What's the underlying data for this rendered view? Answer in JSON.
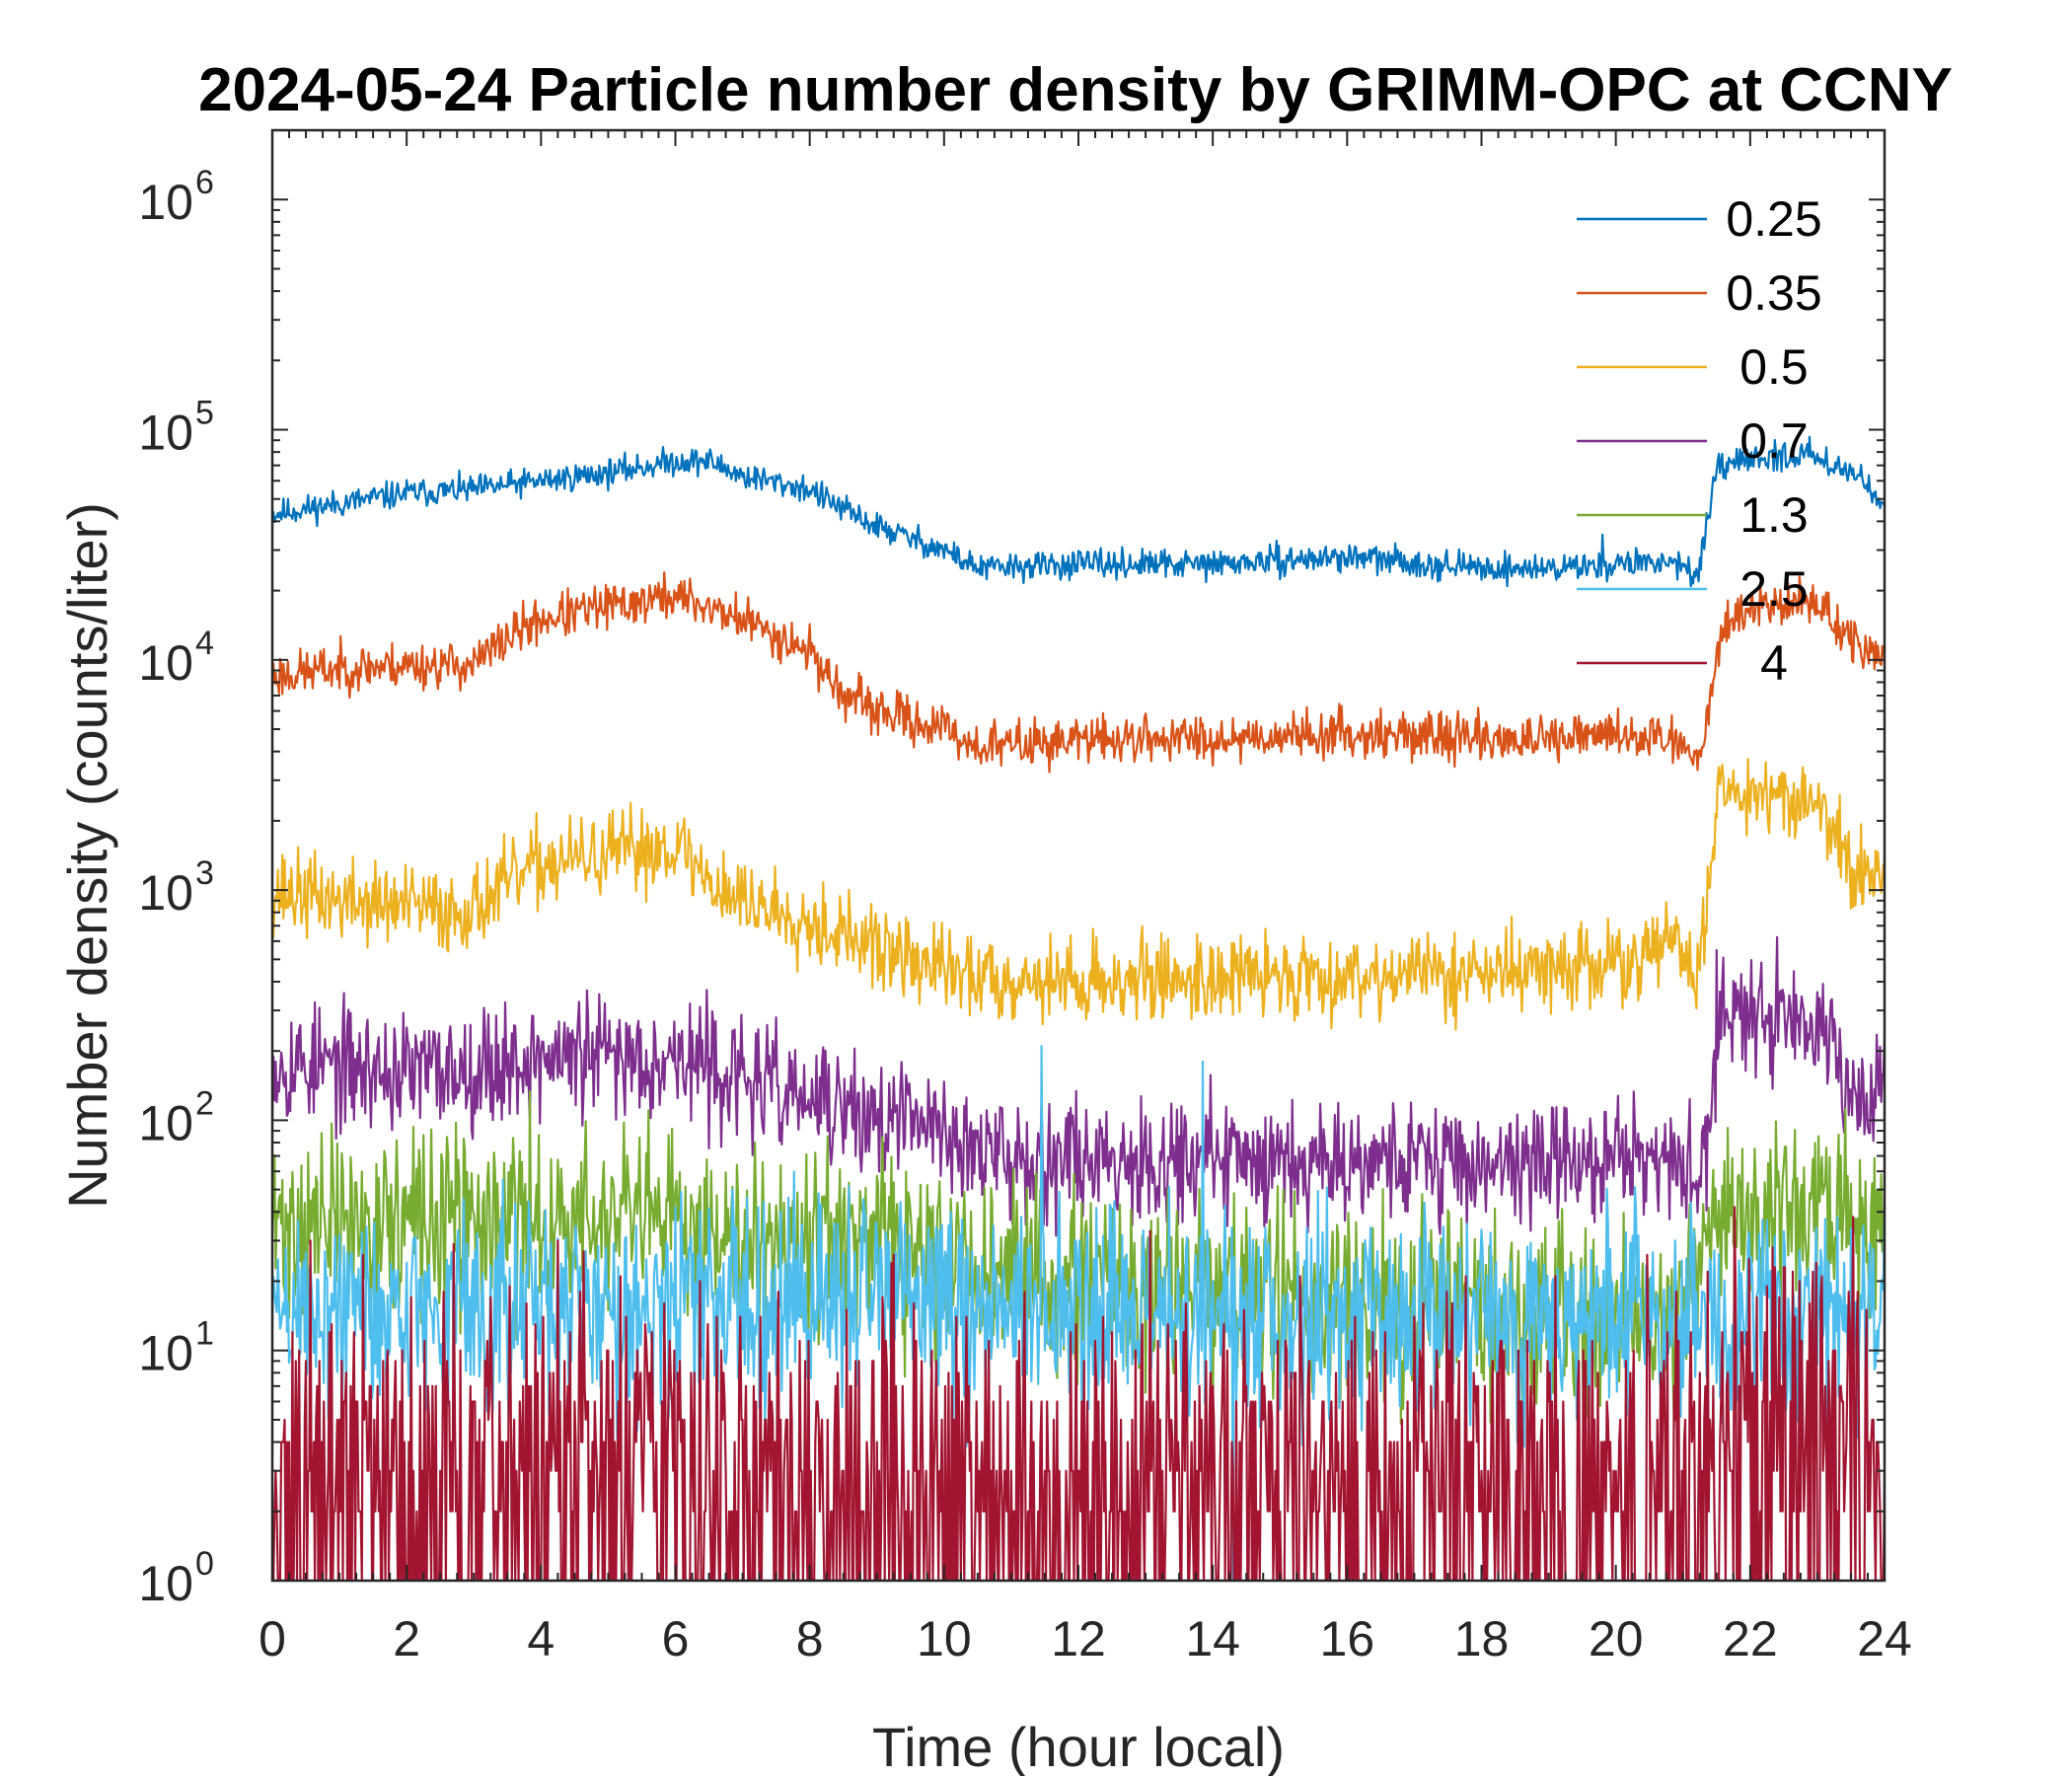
{
  "chart_data": {
    "type": "line",
    "title": "2024-05-24 Particle number density by GRIMM-OPC at CCNY",
    "xlabel": "Time (hour local)",
    "ylabel": "Number density (counts/liter)",
    "xlim": [
      0,
      24
    ],
    "ylim": [
      1,
      2000000
    ],
    "yscale": "log",
    "xticks": [
      "0",
      "2",
      "4",
      "6",
      "8",
      "10",
      "12",
      "14",
      "16",
      "18",
      "20",
      "22",
      "24"
    ],
    "ytick_base": "10",
    "ytick_exponents": [
      "0",
      "1",
      "2",
      "3",
      "4",
      "5",
      "6"
    ],
    "legend_position": "top-right",
    "series": [
      {
        "name": "0.25",
        "color": "#0072BD",
        "noise": 0.03,
        "seed": 11,
        "x": [
          0,
          2,
          3,
          4,
          5,
          6,
          6.5,
          7,
          8,
          8.5,
          9,
          10,
          10.5,
          12,
          14,
          16,
          18,
          19,
          20,
          21,
          21.2,
          21.5,
          22,
          23,
          23.5,
          24
        ],
        "y": [
          43000,
          53000,
          55000,
          60000,
          65000,
          73000,
          73000,
          63000,
          55000,
          45000,
          38000,
          30000,
          25000,
          26000,
          26000,
          28000,
          25000,
          25000,
          26000,
          27000,
          22000,
          65000,
          75000,
          78000,
          65000,
          50000
        ]
      },
      {
        "name": "0.35",
        "color": "#D95319",
        "noise": 0.05,
        "seed": 23,
        "x": [
          0,
          1,
          2,
          3,
          3.5,
          4,
          5,
          6,
          7,
          8,
          8.5,
          9,
          10,
          10.5,
          12,
          14,
          16,
          18,
          19,
          20,
          21,
          21.2,
          21.6,
          22,
          23,
          23.5,
          24
        ],
        "y": [
          8500,
          9200,
          9500,
          9500,
          12500,
          15000,
          17000,
          19000,
          15000,
          11000,
          7000,
          6000,
          5000,
          4200,
          4500,
          4600,
          4800,
          4600,
          4400,
          4800,
          4500,
          3500,
          14000,
          17000,
          18000,
          12000,
          9800
        ]
      },
      {
        "name": "0.5",
        "color": "#EDB120",
        "noise": 0.09,
        "seed": 37,
        "x": [
          0,
          1,
          2,
          2.7,
          3,
          3.5,
          4,
          5,
          6,
          6.5,
          7,
          8,
          9,
          10,
          10.5,
          12,
          14,
          16,
          18,
          20,
          21,
          21.2,
          21.5,
          22,
          23,
          23.5,
          24
        ],
        "y": [
          1000,
          900,
          850,
          800,
          850,
          1050,
          1300,
          1400,
          1600,
          1100,
          900,
          750,
          550,
          450,
          420,
          400,
          420,
          430,
          440,
          470,
          600,
          350,
          2500,
          2800,
          2400,
          1200,
          1200
        ]
      },
      {
        "name": "0.7",
        "color": "#7E2F8E",
        "noise": 0.13,
        "seed": 53,
        "x": [
          0,
          2,
          3,
          4,
          5,
          6,
          6.5,
          7,
          8,
          9,
          10,
          10.5,
          12,
          14,
          16,
          18,
          20,
          21,
          21.3,
          21.5,
          22,
          23,
          23.5,
          24
        ],
        "y": [
          180,
          160,
          170,
          185,
          190,
          190,
          170,
          150,
          120,
          100,
          95,
          70,
          70,
          68,
          70,
          65,
          68,
          65,
          50,
          250,
          320,
          290,
          140,
          140
        ]
      },
      {
        "name": "1.3",
        "color": "#77AC30",
        "noise": 0.2,
        "seed": 71,
        "x": [
          0,
          4,
          8,
          10,
          14,
          18,
          21,
          21.3,
          22,
          24
        ],
        "y": [
          35,
          36,
          34,
          22,
          18,
          15,
          14,
          38,
          42,
          36
        ]
      },
      {
        "name": "2.5",
        "color": "#4DBEEE",
        "noise": 0.22,
        "seed": 89,
        "x": [
          0,
          4,
          8,
          12,
          16,
          20,
          24
        ],
        "y": [
          15,
          15,
          17,
          14,
          14,
          14,
          15
        ]
      },
      {
        "name": "4",
        "color": "#A2142F",
        "noise": 0.3,
        "seed": 97,
        "x": [
          0,
          6,
          12,
          18,
          21,
          22,
          24
        ],
        "y": [
          3.5,
          3.5,
          3.3,
          3.2,
          3.2,
          5,
          4
        ]
      }
    ],
    "spikes": [
      {
        "series": "2.5",
        "x": 11.45,
        "y": 210
      },
      {
        "series": "2.5",
        "x": 13.85,
        "y": 180
      },
      {
        "series": "2.5",
        "x": 14.3,
        "y": 1
      },
      {
        "series": "2.5",
        "x": 23.15,
        "y": 1
      },
      {
        "series": "0.25",
        "x": 19.8,
        "y": 35000
      }
    ]
  }
}
